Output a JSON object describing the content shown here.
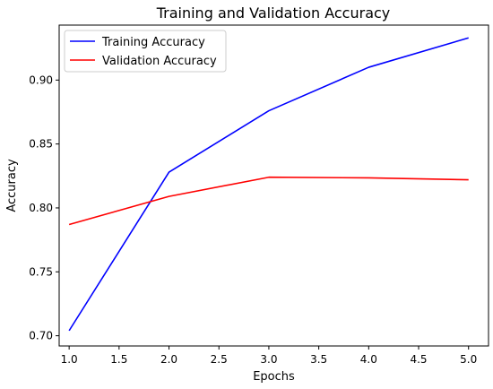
{
  "chart_data": {
    "type": "line",
    "title": "Training and Validation Accuracy",
    "xlabel": "Epochs",
    "ylabel": "Accuracy",
    "xlim": [
      0.9,
      5.2
    ],
    "ylim": [
      0.692,
      0.943
    ],
    "x_ticks": [
      1.0,
      1.5,
      2.0,
      2.5,
      3.0,
      3.5,
      4.0,
      4.5,
      5.0
    ],
    "x_tick_labels": [
      "1.0",
      "1.5",
      "2.0",
      "2.5",
      "3.0",
      "3.5",
      "4.0",
      "4.5",
      "5.0"
    ],
    "y_ticks": [
      0.7,
      0.75,
      0.8,
      0.85,
      0.9
    ],
    "y_tick_labels": [
      "0.70",
      "0.75",
      "0.80",
      "0.85",
      "0.90"
    ],
    "grid": false,
    "legend_position": "top-left",
    "x": [
      1,
      2,
      3,
      4,
      5
    ],
    "series": [
      {
        "name": "Training Accuracy",
        "color": "#0000ff",
        "values": [
          0.704,
          0.828,
          0.876,
          0.91,
          0.933
        ]
      },
      {
        "name": "Validation Accuracy",
        "color": "#ff0000",
        "values": [
          0.787,
          0.809,
          0.824,
          0.8235,
          0.822
        ]
      }
    ]
  }
}
